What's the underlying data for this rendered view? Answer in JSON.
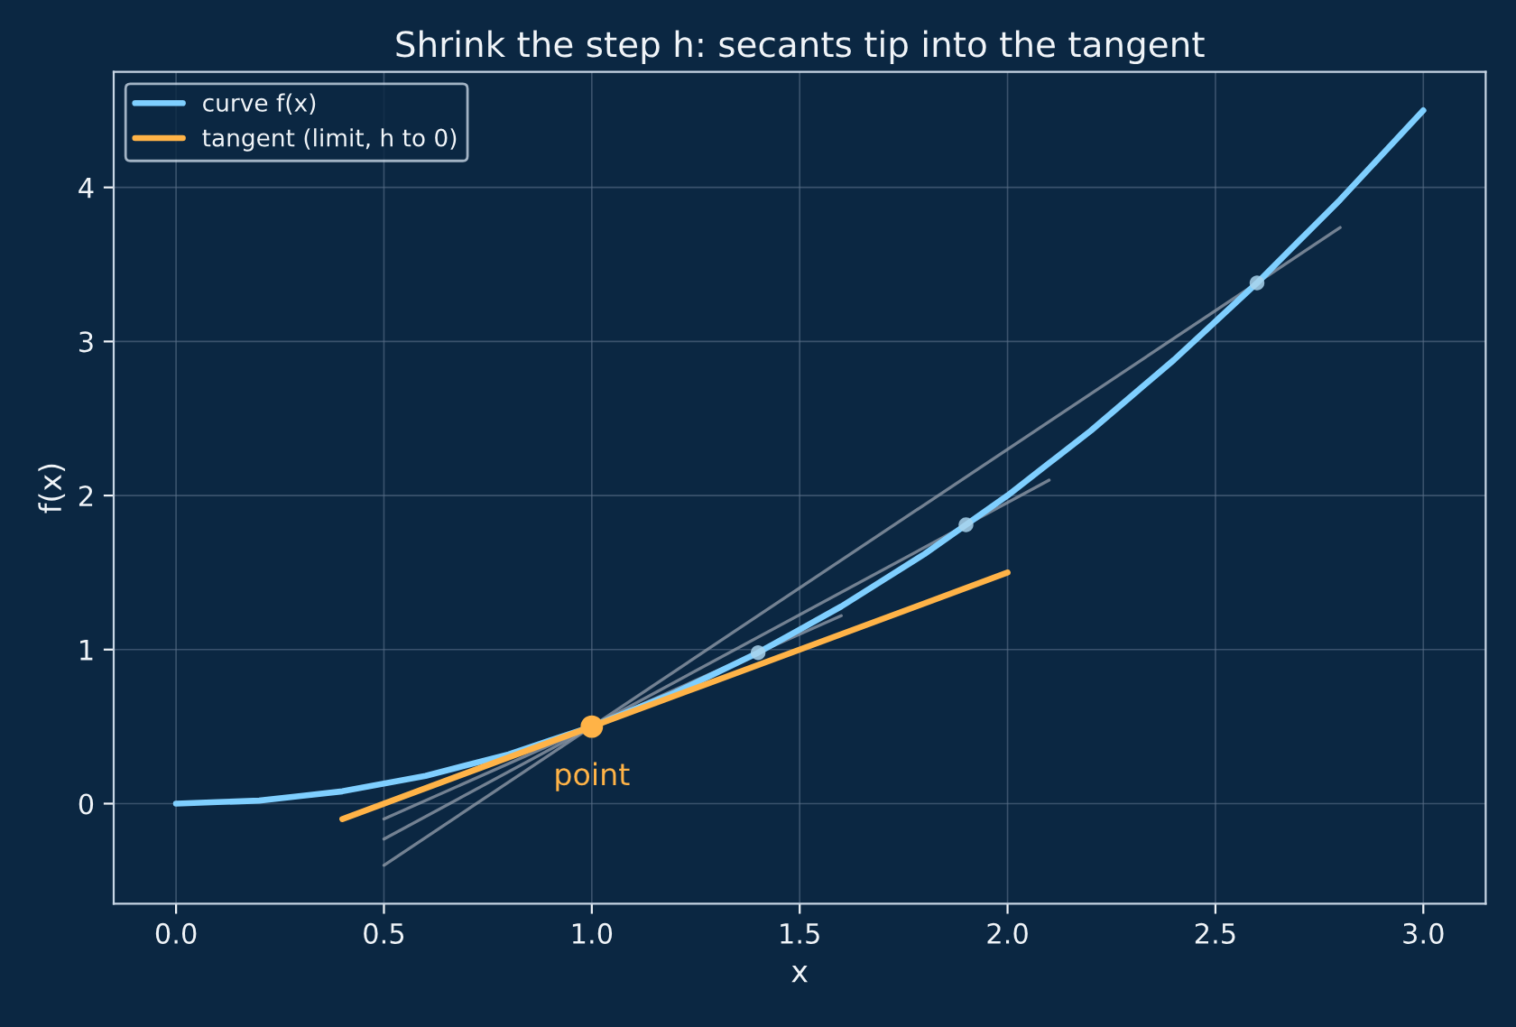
{
  "chart_data": {
    "type": "line",
    "title": "Shrink the step h: secants tip into the tangent",
    "xlabel": "x",
    "ylabel": "f(x)",
    "xlim": [
      -0.15,
      3.15
    ],
    "ylim": [
      -0.65,
      4.75
    ],
    "xticks": [
      {
        "value": 0,
        "label": "0.0"
      },
      {
        "value": 0.5,
        "label": "0.5"
      },
      {
        "value": 1,
        "label": "1.0"
      },
      {
        "value": 1.5,
        "label": "1.5"
      },
      {
        "value": 2,
        "label": "2.0"
      },
      {
        "value": 2.5,
        "label": "2.5"
      },
      {
        "value": 3,
        "label": "3.0"
      }
    ],
    "yticks": [
      0,
      1,
      2,
      3,
      4
    ],
    "grid": true,
    "legend": "top left",
    "series": [
      {
        "name": "curve f(x)",
        "color": "#7fcfff",
        "x": [
          0,
          0.1,
          0.2,
          0.3,
          0.4,
          0.5,
          0.6,
          0.7,
          0.8,
          0.9,
          1.0,
          1.1,
          1.2,
          1.3,
          1.4,
          1.5,
          1.6,
          1.7,
          1.8,
          1.9,
          2.0,
          2.1,
          2.2,
          2.3,
          2.4,
          2.5,
          2.6,
          2.7,
          2.8,
          2.9,
          3.0
        ],
        "values": [
          0,
          0.01,
          0.02,
          0.05,
          0.08,
          0.13,
          0.18,
          0.25,
          0.32,
          0.41,
          0.5,
          0.61,
          0.72,
          0.85,
          0.98,
          1.13,
          1.28,
          1.45,
          1.62,
          1.81,
          2.0,
          2.21,
          2.42,
          2.65,
          2.88,
          3.13,
          3.38,
          3.65,
          3.92,
          4.21,
          4.5
        ]
      },
      {
        "name": "tangent (limit, h to 0)",
        "color": "#ffb347",
        "x": [
          0.4,
          2.0
        ],
        "values": [
          -0.1,
          1.5
        ]
      },
      {
        "color": "#8d99a6",
        "x": [
          0.5,
          1.6
        ],
        "values": [
          -0.1,
          1.22
        ]
      },
      {
        "color": "#8d99a6",
        "x": [
          0.5,
          2.1
        ],
        "values": [
          -0.23,
          2.1
        ]
      },
      {
        "color": "#8d99a6",
        "x": [
          0.5,
          2.8
        ],
        "values": [
          -0.4,
          3.74
        ]
      },
      {
        "type": "scatter",
        "color": "#a9d3ec",
        "x": [
          1.4,
          1.9,
          2.6
        ],
        "values": [
          0.98,
          1.81,
          3.38
        ]
      },
      {
        "type": "scatter",
        "color": "#ffb347",
        "x": [
          1.0
        ],
        "values": [
          0.5
        ]
      }
    ],
    "annotations": [
      {
        "text": "point",
        "x": 1.0,
        "y": 0.5
      }
    ]
  }
}
